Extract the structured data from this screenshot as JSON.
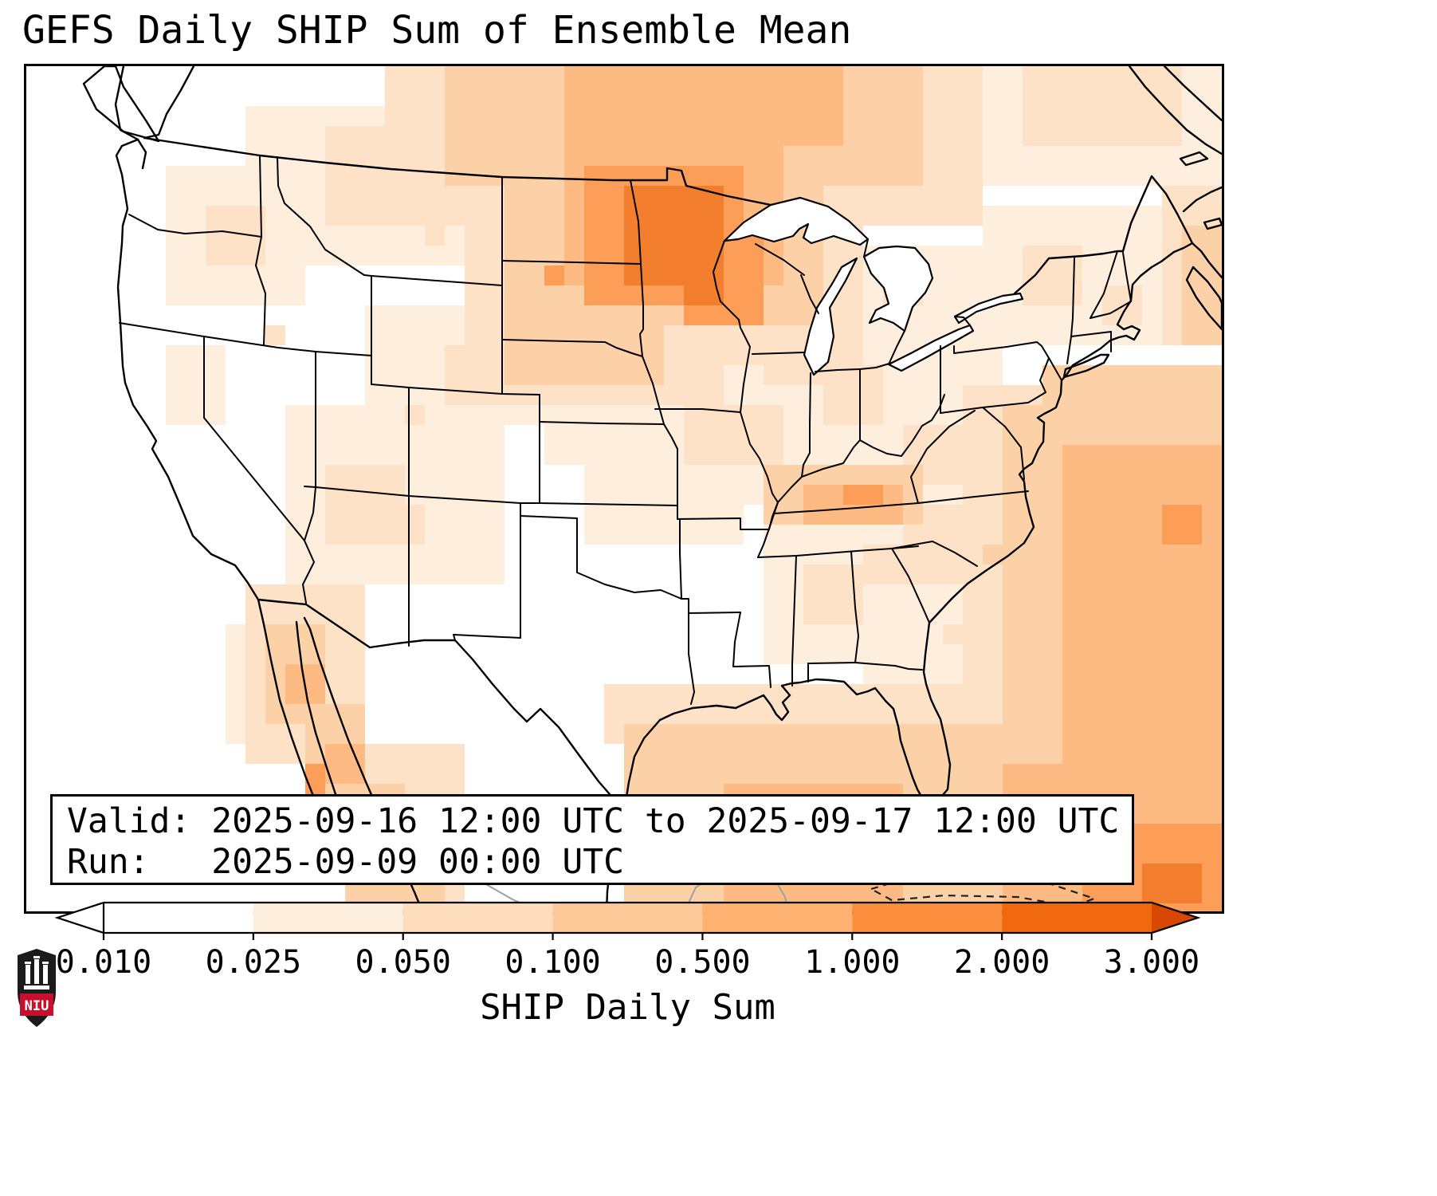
{
  "title": "GEFS Daily SHIP Sum of Ensemble Mean",
  "info_box": {
    "valid_line": "Valid: 2025-09-16 12:00 UTC to 2025-09-17 12:00 UTC",
    "run_line": "Run:   2025-09-09 00:00 UTC"
  },
  "colorbar": {
    "label": "SHIP Daily Sum",
    "ticks": [
      "0.010",
      "0.025",
      "0.050",
      "0.100",
      "0.500",
      "1.000",
      "2.000",
      "3.000"
    ],
    "segment_colors": [
      "#ffffff",
      "#fdeedd",
      "#fdddbc",
      "#fdc998",
      "#fdb272",
      "#fb8d3d",
      "#f1690e"
    ],
    "under_arrow_color": "#ffffff",
    "over_arrow_color": "#d94801"
  },
  "logo": {
    "text": "NIU"
  },
  "map": {
    "cell_size": 25,
    "palette": [
      "#fff6ee",
      "#fdeedd",
      "#fde2c7",
      "#fdd1a7",
      "#fdbb83",
      "#fc9e58",
      "#f37f2e",
      "#e35f11"
    ],
    "cells": [
      [
        11,
        2,
        14,
        8,
        1
      ],
      [
        7,
        5,
        7,
        7,
        1
      ],
      [
        17,
        12,
        9,
        6,
        1
      ],
      [
        13,
        17,
        11,
        9,
        1
      ],
      [
        7,
        14,
        3,
        4,
        1
      ],
      [
        30,
        9,
        18,
        8,
        1
      ],
      [
        28,
        13,
        16,
        8,
        1
      ],
      [
        31,
        16,
        9,
        6,
        1
      ],
      [
        28,
        18,
        8,
        6,
        1
      ],
      [
        37,
        23,
        8,
        7,
        1
      ],
      [
        42,
        16,
        8,
        8,
        1
      ],
      [
        46,
        18,
        6,
        5,
        1
      ],
      [
        48,
        7,
        9,
        7,
        1
      ],
      [
        48,
        0,
        12,
        6,
        1
      ],
      [
        42,
        30,
        5,
        6,
        1
      ],
      [
        45,
        14,
        4,
        26,
        1
      ],
      [
        26,
        16,
        6,
        4,
        1
      ],
      [
        10,
        28,
        2,
        6,
        1
      ],
      [
        18,
        0,
        30,
        8,
        2
      ],
      [
        50,
        0,
        8,
        4,
        2
      ],
      [
        15,
        3,
        9,
        5,
        2
      ],
      [
        9,
        7,
        3,
        3,
        2
      ],
      [
        22,
        2,
        20,
        13,
        2
      ],
      [
        23,
        12,
        12,
        5,
        2
      ],
      [
        33,
        11,
        5,
        4,
        2
      ],
      [
        37,
        13,
        4,
        3,
        2
      ],
      [
        40,
        15,
        3,
        3,
        2
      ],
      [
        43,
        10,
        2,
        2,
        2
      ],
      [
        21,
        14,
        3,
        3,
        2
      ],
      [
        15,
        20,
        4,
        4,
        2
      ],
      [
        18,
        22,
        2,
        2,
        2
      ],
      [
        33,
        17,
        5,
        3,
        2
      ],
      [
        39,
        25,
        3,
        3,
        2
      ],
      [
        42,
        24,
        2,
        2,
        2
      ],
      [
        44,
        18,
        3,
        3,
        2
      ],
      [
        50,
        9,
        3,
        3,
        2
      ],
      [
        54,
        11,
        2,
        2,
        2
      ],
      [
        43,
        31,
        3,
        3,
        2
      ],
      [
        44,
        22,
        6,
        4,
        2
      ],
      [
        11,
        26,
        6,
        9,
        2
      ],
      [
        16,
        34,
        6,
        9,
        2
      ],
      [
        29,
        31,
        20,
        3,
        2
      ],
      [
        47,
        16,
        13,
        27,
        2
      ],
      [
        57,
        6,
        3,
        8,
        2
      ],
      [
        20,
        8,
        1,
        1,
        2
      ],
      [
        25,
        7,
        1,
        1,
        2
      ],
      [
        36,
        17,
        1,
        1,
        2
      ],
      [
        46,
        28,
        1,
        1,
        2
      ],
      [
        12,
        13,
        1,
        1,
        2
      ],
      [
        19,
        17,
        1,
        1,
        2
      ],
      [
        41,
        13,
        1,
        1,
        2
      ],
      [
        21,
        0,
        24,
        6,
        3
      ],
      [
        24,
        2,
        16,
        11,
        3
      ],
      [
        24,
        13,
        8,
        3,
        3
      ],
      [
        37,
        20,
        8,
        3,
        3
      ],
      [
        12,
        28,
        3,
        5,
        3
      ],
      [
        14,
        32,
        3,
        5,
        3
      ],
      [
        16,
        36,
        3,
        6,
        3
      ],
      [
        17,
        38,
        4,
        5,
        3
      ],
      [
        30,
        33,
        19,
        10,
        3
      ],
      [
        49,
        17,
        11,
        26,
        3
      ],
      [
        51,
        15,
        9,
        3,
        3
      ],
      [
        58,
        8,
        2,
        6,
        3
      ],
      [
        48,
        24,
        1,
        1,
        3
      ],
      [
        27,
        0,
        14,
        4,
        4
      ],
      [
        27,
        3,
        11,
        8,
        4
      ],
      [
        39,
        21,
        5,
        2,
        4
      ],
      [
        13,
        30,
        2,
        2,
        4
      ],
      [
        15,
        34,
        2,
        2,
        4
      ],
      [
        35,
        36,
        9,
        6,
        4
      ],
      [
        52,
        19,
        8,
        17,
        4
      ],
      [
        49,
        35,
        11,
        8,
        4
      ],
      [
        28,
        5,
        8,
        7,
        5
      ],
      [
        33,
        8,
        4,
        5,
        5
      ],
      [
        26,
        10,
        1,
        1,
        5
      ],
      [
        41,
        21,
        2,
        1,
        5
      ],
      [
        14,
        35,
        1,
        2,
        5
      ],
      [
        57,
        22,
        2,
        2,
        5
      ],
      [
        53,
        38,
        7,
        5,
        5
      ],
      [
        30,
        6,
        5,
        5,
        6
      ],
      [
        33,
        9,
        2,
        3,
        6
      ],
      [
        56,
        40,
        3,
        2,
        6
      ]
    ]
  }
}
